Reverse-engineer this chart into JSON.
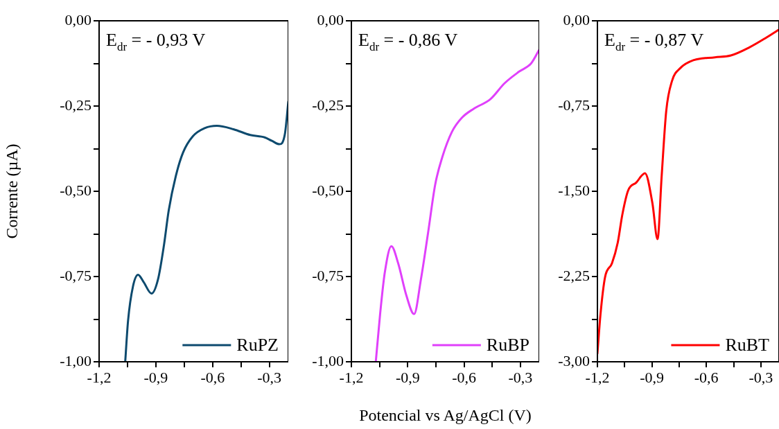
{
  "chart_data": [
    {
      "type": "line",
      "ylabel": "Corrente (µA)",
      "annotations": [
        "E$_{dr}$ = - 0,93 V"
      ],
      "legend": "bottom right",
      "grid": false,
      "xlim": [
        -1.2,
        -0.2
      ],
      "xticks": [
        {
          "value": -1.2,
          "label": "-1,2"
        },
        {
          "value": -1.05,
          "label": null
        },
        {
          "value": -0.9,
          "label": "-0,9"
        },
        {
          "value": -0.75,
          "label": null
        },
        {
          "value": -0.6,
          "label": "-0,6"
        },
        {
          "value": -0.45,
          "label": null
        },
        {
          "value": -0.3,
          "label": "-0,3"
        }
      ],
      "ylim": [
        -1,
        0
      ],
      "yticks": [
        {
          "value": -1,
          "label": "-1,00"
        },
        {
          "value": -0.875,
          "label": null
        },
        {
          "value": -0.75,
          "label": "-0,75"
        },
        {
          "value": -0.625,
          "label": null
        },
        {
          "value": -0.5,
          "label": "-0,50"
        },
        {
          "value": -0.375,
          "label": null
        },
        {
          "value": -0.25,
          "label": "-0,25"
        },
        {
          "value": -0.125,
          "label": null
        },
        {
          "value": 0,
          "label": "0,00"
        }
      ],
      "series": [
        {
          "name": "RuPZ",
          "color": "#0d4a6e",
          "x": [
            -1.062,
            -1.047,
            -1.021,
            -0.994,
            -0.965,
            -0.923,
            -0.889,
            -0.857,
            -0.832,
            -0.794,
            -0.756,
            -0.705,
            -0.642,
            -0.578,
            -0.49,
            -0.401,
            -0.325,
            -0.287,
            -0.247,
            -0.218,
            -0.2
          ],
          "values": [
            -1.0,
            -0.88,
            -0.779,
            -0.745,
            -0.766,
            -0.8,
            -0.759,
            -0.657,
            -0.556,
            -0.454,
            -0.386,
            -0.339,
            -0.315,
            -0.308,
            -0.318,
            -0.335,
            -0.342,
            -0.352,
            -0.362,
            -0.332,
            -0.237
          ]
        }
      ]
    },
    {
      "type": "line",
      "xlabel": "Potencial vs Ag/AgCl (V)",
      "annotations": [
        "E$_{dr}$ = - 0,86 V"
      ],
      "legend": "bottom right",
      "grid": false,
      "xlim": [
        -1.2,
        -0.2
      ],
      "xticks": [
        {
          "value": -1.2,
          "label": "-1,2"
        },
        {
          "value": -1.05,
          "label": null
        },
        {
          "value": -0.9,
          "label": "-0,9"
        },
        {
          "value": -0.75,
          "label": null
        },
        {
          "value": -0.6,
          "label": "-0,6"
        },
        {
          "value": -0.45,
          "label": null
        },
        {
          "value": -0.3,
          "label": "-0,3"
        }
      ],
      "ylim": [
        -1,
        0
      ],
      "yticks": [
        {
          "value": -1,
          "label": "-1,00"
        },
        {
          "value": -0.875,
          "label": null
        },
        {
          "value": -0.75,
          "label": "-0,75"
        },
        {
          "value": -0.625,
          "label": null
        },
        {
          "value": -0.5,
          "label": "-0,50"
        },
        {
          "value": -0.375,
          "label": null
        },
        {
          "value": -0.25,
          "label": "-0,25"
        },
        {
          "value": -0.125,
          "label": null
        },
        {
          "value": 0,
          "label": "0,00"
        }
      ],
      "series": [
        {
          "name": "RuBP",
          "color": "#e040fb",
          "x": [
            -1.07,
            -1.047,
            -1.022,
            -0.987,
            -0.951,
            -0.907,
            -0.866,
            -0.83,
            -0.792,
            -0.754,
            -0.716,
            -0.664,
            -0.613,
            -0.549,
            -0.46,
            -0.384,
            -0.307,
            -0.243,
            -0.2
          ],
          "values": [
            -1.0,
            -0.86,
            -0.738,
            -0.661,
            -0.711,
            -0.806,
            -0.86,
            -0.759,
            -0.623,
            -0.481,
            -0.4,
            -0.325,
            -0.285,
            -0.258,
            -0.23,
            -0.183,
            -0.149,
            -0.125,
            -0.085
          ]
        }
      ]
    },
    {
      "type": "line",
      "annotations": [
        "E$_{dr}$ = - 0,87 V"
      ],
      "legend": "bottom right",
      "grid": false,
      "xlim": [
        -1.2,
        -0.2
      ],
      "xticks": [
        {
          "value": -1.2,
          "label": "-1,2"
        },
        {
          "value": -1.05,
          "label": null
        },
        {
          "value": -0.9,
          "label": "-0,9"
        },
        {
          "value": -0.75,
          "label": null
        },
        {
          "value": -0.6,
          "label": "-0,6"
        },
        {
          "value": -0.45,
          "label": null
        },
        {
          "value": -0.3,
          "label": "-0,3"
        }
      ],
      "ylim": [
        -3,
        0
      ],
      "yticks": [
        {
          "value": -3,
          "label": "-3,00"
        },
        {
          "value": -2.625,
          "label": null
        },
        {
          "value": -2.25,
          "label": "-2,25"
        },
        {
          "value": -1.875,
          "label": null
        },
        {
          "value": -1.5,
          "label": "-1,50"
        },
        {
          "value": -1.125,
          "label": null
        },
        {
          "value": -0.75,
          "label": "-0,75"
        },
        {
          "value": -0.375,
          "label": null
        },
        {
          "value": 0,
          "label": "0,00"
        }
      ],
      "series": [
        {
          "name": "RuBT",
          "color": "#ff0000",
          "x": [
            -1.2,
            -1.183,
            -1.158,
            -1.12,
            -1.088,
            -1.063,
            -1.031,
            -0.986,
            -0.938,
            -0.897,
            -0.869,
            -0.846,
            -0.821,
            -0.789,
            -0.744,
            -0.668,
            -0.553,
            -0.465,
            -0.363,
            -0.274,
            -0.204
          ],
          "values": [
            -2.927,
            -2.581,
            -2.256,
            -2.134,
            -1.951,
            -1.707,
            -1.494,
            -1.423,
            -1.341,
            -1.606,
            -1.921,
            -1.362,
            -0.793,
            -0.528,
            -0.417,
            -0.345,
            -0.321,
            -0.305,
            -0.234,
            -0.152,
            -0.081
          ]
        }
      ]
    }
  ]
}
